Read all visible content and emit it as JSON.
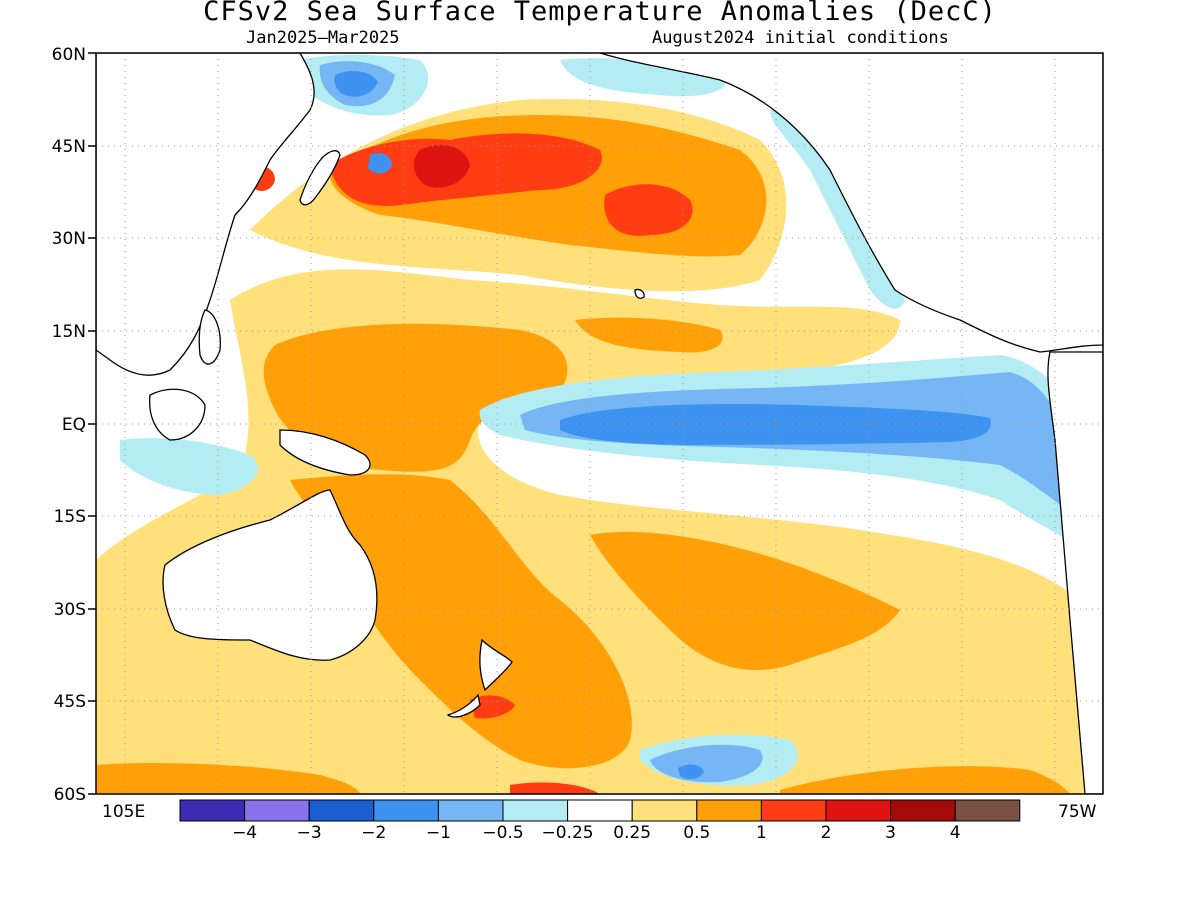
{
  "title": "CFSv2 Sea Surface Temperature Anomalies (DecC)",
  "subtitle_left": "Jan2025—Mar2025",
  "subtitle_right": "August2024 initial conditions",
  "lat_labels": [
    "60N",
    "45N",
    "30N",
    "15N",
    "EQ",
    "15S",
    "30S",
    "45S",
    "60S"
  ],
  "lon_labels": {
    "left": "105E",
    "right": "75W"
  },
  "colorbar": {
    "labels": [
      "−4",
      "−3",
      "−2",
      "−1",
      "−0.5",
      "−0.25",
      "0.25",
      "0.5",
      "1",
      "2",
      "3",
      "4"
    ],
    "colors": [
      "#3c2cb4",
      "#8a72ec",
      "#1a5ed2",
      "#3f93f0",
      "#77b6f4",
      "#b4ecf4",
      "#ffffff",
      "#ffe07a",
      "#ffa008",
      "#ff3c12",
      "#dd1412",
      "#a50a0a",
      "#7a5044"
    ]
  },
  "palette": {
    "land": "#ffffff",
    "warm1": "#ffe07a",
    "warm2": "#ffa008",
    "warm3": "#ff3c12",
    "warm4": "#dd1412",
    "cool1": "#b4ecf4",
    "cool2": "#77b6f4",
    "cool3": "#3f93f0",
    "cool4": "#1a5ed2"
  }
}
